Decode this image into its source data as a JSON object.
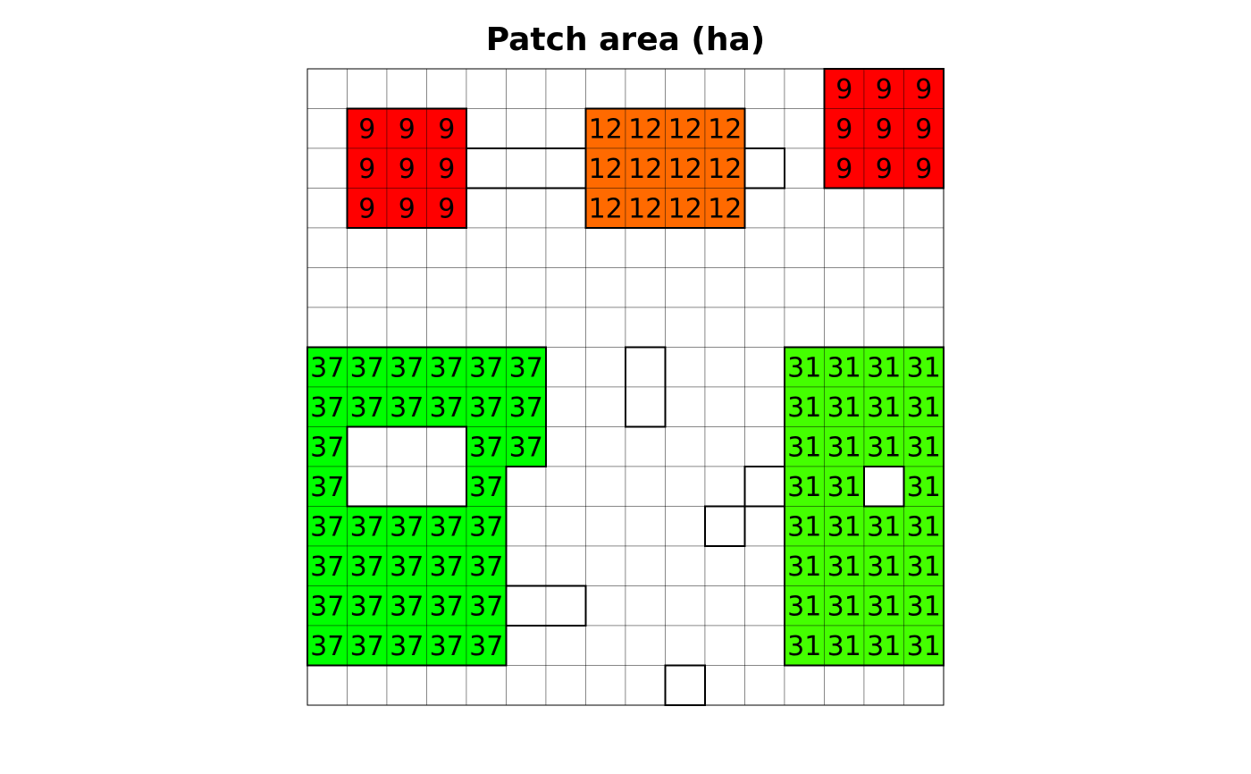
{
  "chart_data": {
    "type": "heatmap",
    "title": "Patch area (ha)",
    "grid": true,
    "n_rows": 16,
    "n_cols": 16,
    "colors": {
      "9": "#ff0000",
      "12": "#ff6a00",
      "31": "#44ff00",
      "37": "#00ff00",
      "background": "#ffffff"
    },
    "rows": [
      [
        null,
        null,
        null,
        null,
        null,
        null,
        null,
        null,
        null,
        null,
        null,
        null,
        null,
        9,
        9,
        9
      ],
      [
        null,
        9,
        9,
        9,
        null,
        null,
        null,
        12,
        12,
        12,
        12,
        null,
        null,
        9,
        9,
        9
      ],
      [
        null,
        9,
        9,
        9,
        0,
        0,
        0,
        12,
        12,
        12,
        12,
        0,
        null,
        9,
        9,
        9
      ],
      [
        null,
        9,
        9,
        9,
        null,
        null,
        null,
        12,
        12,
        12,
        12,
        null,
        null,
        null,
        null,
        null
      ],
      [
        null,
        null,
        null,
        null,
        null,
        null,
        null,
        null,
        null,
        null,
        null,
        null,
        null,
        null,
        null,
        null
      ],
      [
        null,
        null,
        null,
        null,
        null,
        null,
        null,
        null,
        null,
        null,
        null,
        null,
        null,
        null,
        null,
        null
      ],
      [
        null,
        null,
        null,
        null,
        null,
        null,
        null,
        null,
        null,
        null,
        null,
        null,
        null,
        null,
        null,
        null
      ],
      [
        37,
        37,
        37,
        37,
        37,
        37,
        null,
        null,
        0,
        null,
        null,
        null,
        31,
        31,
        31,
        31
      ],
      [
        37,
        37,
        37,
        37,
        37,
        37,
        null,
        null,
        0,
        null,
        null,
        null,
        31,
        31,
        31,
        31
      ],
      [
        37,
        0,
        0,
        0,
        37,
        37,
        null,
        null,
        null,
        null,
        null,
        null,
        31,
        31,
        31,
        31
      ],
      [
        37,
        0,
        0,
        0,
        37,
        null,
        null,
        null,
        null,
        null,
        null,
        0,
        31,
        31,
        0,
        31
      ],
      [
        37,
        37,
        37,
        37,
        37,
        null,
        null,
        null,
        null,
        null,
        0,
        null,
        31,
        31,
        31,
        31
      ],
      [
        37,
        37,
        37,
        37,
        37,
        null,
        null,
        null,
        null,
        null,
        null,
        null,
        31,
        31,
        31,
        31
      ],
      [
        37,
        37,
        37,
        37,
        37,
        0,
        0,
        null,
        null,
        null,
        null,
        null,
        31,
        31,
        31,
        31
      ],
      [
        37,
        37,
        37,
        37,
        37,
        null,
        null,
        null,
        null,
        null,
        null,
        null,
        31,
        31,
        31,
        31
      ],
      [
        null,
        null,
        null,
        null,
        null,
        null,
        null,
        null,
        null,
        0,
        null,
        null,
        null,
        null,
        null,
        null
      ]
    ]
  }
}
